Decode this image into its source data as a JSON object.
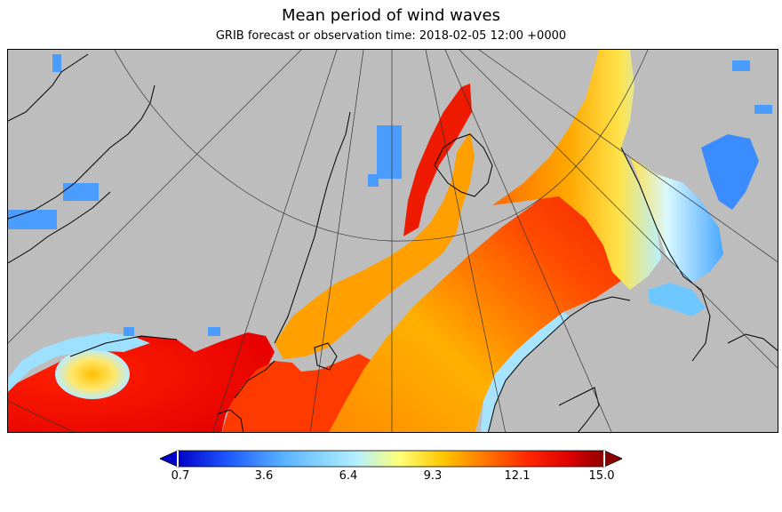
{
  "header": {
    "title": "Mean period of wind waves",
    "subtitle": "GRIB forecast or observation time: 2018-02-05 12:00 +0000"
  },
  "map": {
    "land_color": "#bdbdbd",
    "coastline_color": "#000000",
    "graticule_color": "#333333"
  },
  "colorbar": {
    "min": 0.7,
    "max": 15.0,
    "ticks": [
      "0.7",
      "3.6",
      "6.4",
      "9.3",
      "12.1",
      "15.0"
    ],
    "colors": [
      "#0000c8",
      "#1e5aff",
      "#5ab4ff",
      "#b4f0ff",
      "#ffff78",
      "#ffc800",
      "#ff7800",
      "#ff2800",
      "#dc0000",
      "#8c0000"
    ]
  }
}
